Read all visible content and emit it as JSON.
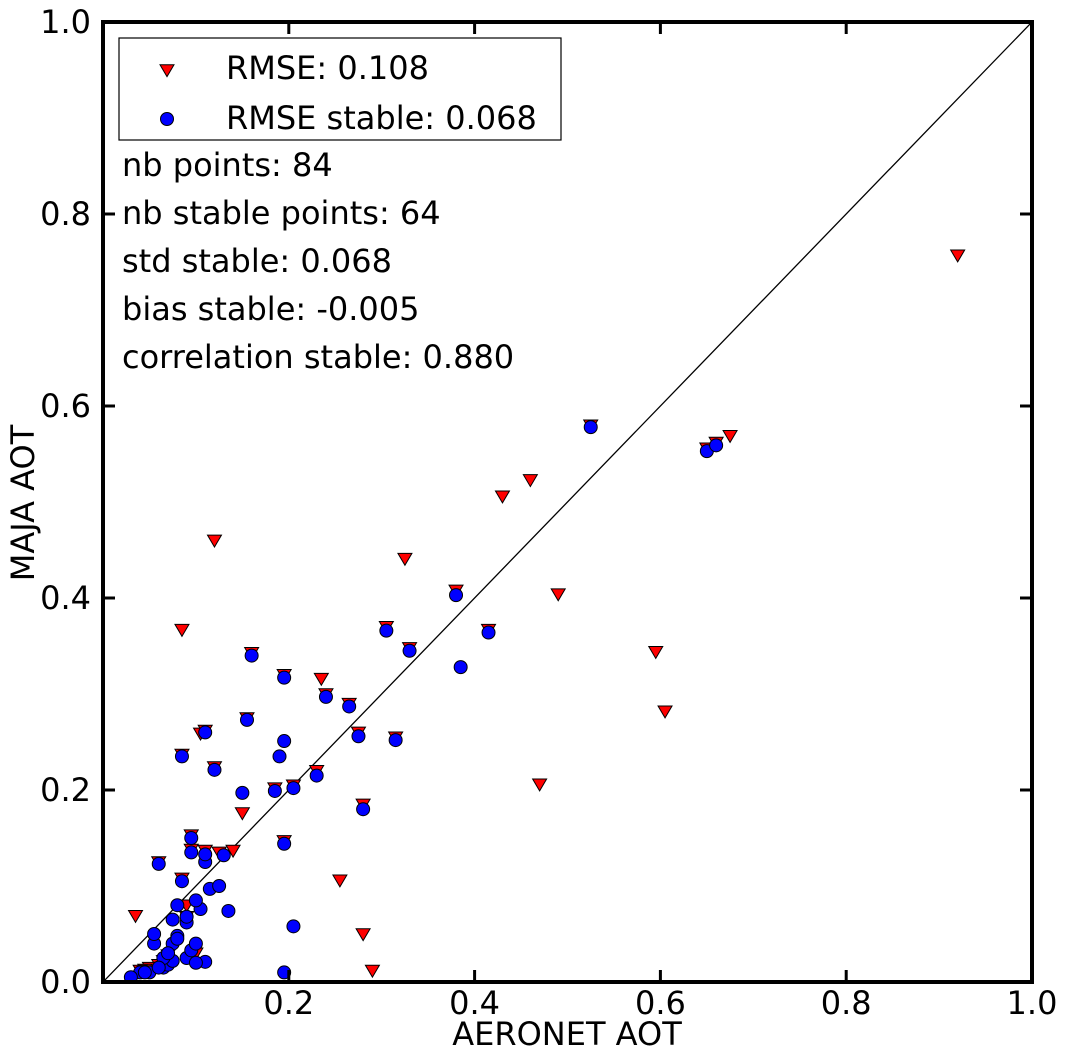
{
  "chart_data": {
    "type": "scatter",
    "xlabel": "AERONET AOT",
    "ylabel": "MAJA AOT",
    "xlim": [
      0.0,
      1.0
    ],
    "ylim": [
      0.0,
      1.0
    ],
    "xticks": [
      "0.2",
      "0.4",
      "0.6",
      "0.8",
      "1.0"
    ],
    "yticks": [
      "0.0",
      "0.2",
      "0.4",
      "0.6",
      "0.8",
      "1.0"
    ],
    "grid": false,
    "legend_position": "top-left",
    "reference_line": "y = x",
    "legend": [
      {
        "label": "RMSE: 0.108",
        "marker": "triangle-down",
        "color": "#ff0000"
      },
      {
        "label": "RMSE stable: 0.068",
        "marker": "circle",
        "color": "#0000ff"
      }
    ],
    "annotations": [
      "nb points: 84",
      "nb stable points: 64",
      "std stable: 0.068",
      "bias stable: -0.005",
      "correlation stable: 0.880"
    ],
    "series": [
      {
        "name": "RMSE: 0.108",
        "marker": "triangle-down",
        "color": "#ff0000",
        "points": [
          [
            0.035,
            0.069
          ],
          [
            0.085,
            0.367
          ],
          [
            0.12,
            0.46
          ],
          [
            0.105,
            0.259
          ],
          [
            0.15,
            0.176
          ],
          [
            0.235,
            0.316
          ],
          [
            0.255,
            0.106
          ],
          [
            0.28,
            0.05
          ],
          [
            0.29,
            0.012
          ],
          [
            0.325,
            0.441
          ],
          [
            0.43,
            0.506
          ],
          [
            0.46,
            0.523
          ],
          [
            0.47,
            0.206
          ],
          [
            0.49,
            0.404
          ],
          [
            0.595,
            0.344
          ],
          [
            0.605,
            0.282
          ],
          [
            0.675,
            0.569
          ],
          [
            0.92,
            0.757
          ],
          [
            0.525,
            0.58
          ],
          [
            0.66,
            0.562
          ],
          [
            0.65,
            0.556
          ],
          [
            0.38,
            0.408
          ],
          [
            0.415,
            0.367
          ],
          [
            0.305,
            0.37
          ],
          [
            0.265,
            0.29
          ],
          [
            0.24,
            0.3
          ],
          [
            0.16,
            0.343
          ],
          [
            0.195,
            0.32
          ],
          [
            0.155,
            0.275
          ],
          [
            0.11,
            0.262
          ],
          [
            0.23,
            0.22
          ],
          [
            0.185,
            0.202
          ],
          [
            0.205,
            0.205
          ],
          [
            0.195,
            0.147
          ],
          [
            0.28,
            0.185
          ],
          [
            0.275,
            0.26
          ],
          [
            0.315,
            0.255
          ],
          [
            0.33,
            0.348
          ],
          [
            0.1,
            0.03
          ],
          [
            0.07,
            0.028
          ],
          [
            0.065,
            0.022
          ],
          [
            0.06,
            0.018
          ],
          [
            0.07,
            0.02
          ],
          [
            0.05,
            0.015
          ],
          [
            0.045,
            0.013
          ],
          [
            0.04,
            0.012
          ],
          [
            0.125,
            0.135
          ],
          [
            0.085,
            0.237
          ],
          [
            0.06,
            0.125
          ],
          [
            0.095,
            0.153
          ],
          [
            0.085,
            0.108
          ],
          [
            0.11,
            0.137
          ],
          [
            0.14,
            0.137
          ],
          [
            0.095,
            0.138
          ],
          [
            0.12,
            0.224
          ],
          [
            0.09,
            0.068
          ],
          [
            0.09,
            0.08
          ]
        ]
      },
      {
        "name": "RMSE stable: 0.068",
        "marker": "circle",
        "color": "#0000ff",
        "points": [
          [
            0.04,
            0.01
          ],
          [
            0.05,
            0.01
          ],
          [
            0.065,
            0.015
          ],
          [
            0.07,
            0.018
          ],
          [
            0.075,
            0.022
          ],
          [
            0.065,
            0.025
          ],
          [
            0.09,
            0.025
          ],
          [
            0.11,
            0.021
          ],
          [
            0.095,
            0.033
          ],
          [
            0.1,
            0.04
          ],
          [
            0.075,
            0.04
          ],
          [
            0.055,
            0.04
          ],
          [
            0.08,
            0.048
          ],
          [
            0.055,
            0.05
          ],
          [
            0.205,
            0.058
          ],
          [
            0.09,
            0.062
          ],
          [
            0.075,
            0.065
          ],
          [
            0.09,
            0.068
          ],
          [
            0.135,
            0.074
          ],
          [
            0.105,
            0.076
          ],
          [
            0.08,
            0.08
          ],
          [
            0.1,
            0.085
          ],
          [
            0.115,
            0.097
          ],
          [
            0.125,
            0.1
          ],
          [
            0.085,
            0.105
          ],
          [
            0.06,
            0.123
          ],
          [
            0.11,
            0.125
          ],
          [
            0.11,
            0.133
          ],
          [
            0.13,
            0.132
          ],
          [
            0.095,
            0.135
          ],
          [
            0.195,
            0.144
          ],
          [
            0.095,
            0.15
          ],
          [
            0.28,
            0.18
          ],
          [
            0.15,
            0.197
          ],
          [
            0.185,
            0.199
          ],
          [
            0.205,
            0.202
          ],
          [
            0.23,
            0.215
          ],
          [
            0.12,
            0.221
          ],
          [
            0.19,
            0.235
          ],
          [
            0.085,
            0.235
          ],
          [
            0.195,
            0.251
          ],
          [
            0.315,
            0.252
          ],
          [
            0.275,
            0.256
          ],
          [
            0.11,
            0.26
          ],
          [
            0.155,
            0.273
          ],
          [
            0.265,
            0.287
          ],
          [
            0.24,
            0.297
          ],
          [
            0.195,
            0.317
          ],
          [
            0.385,
            0.328
          ],
          [
            0.16,
            0.34
          ],
          [
            0.33,
            0.345
          ],
          [
            0.415,
            0.364
          ],
          [
            0.305,
            0.366
          ],
          [
            0.38,
            0.403
          ],
          [
            0.525,
            0.578
          ],
          [
            0.65,
            0.553
          ],
          [
            0.66,
            0.559
          ],
          [
            0.195,
            0.01
          ],
          [
            0.03,
            0.005
          ],
          [
            0.045,
            0.01
          ],
          [
            0.07,
            0.03
          ],
          [
            0.08,
            0.045
          ],
          [
            0.1,
            0.02
          ],
          [
            0.06,
            0.015
          ]
        ]
      }
    ]
  }
}
